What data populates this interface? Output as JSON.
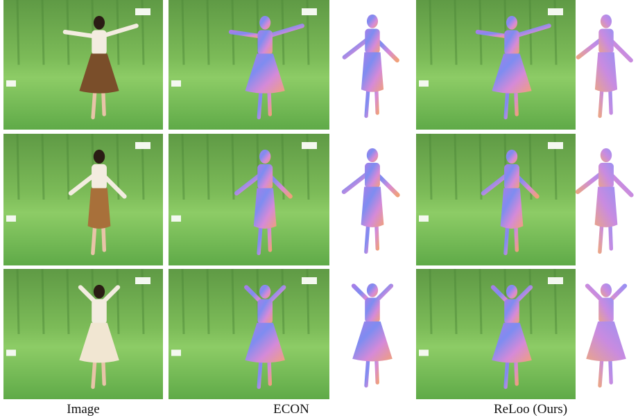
{
  "captions": [
    "Image",
    "ECON",
    "ReLoo (Ours)"
  ]
}
